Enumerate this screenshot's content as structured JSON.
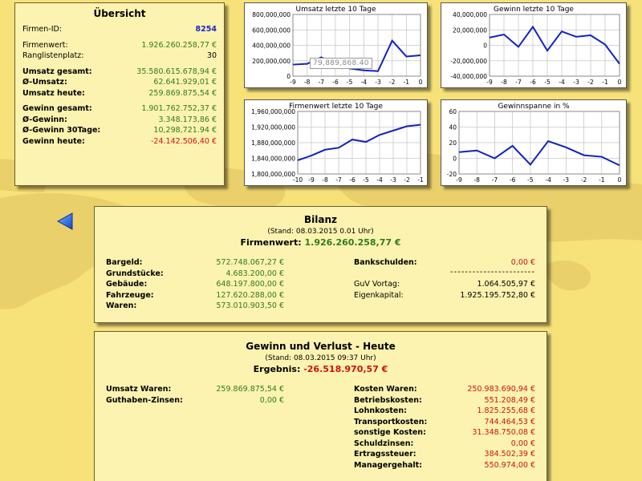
{
  "colors": {
    "positive": "#2e7d18",
    "negative": "#d01010",
    "chart_line": "#1222c0",
    "background": "#f7e27a",
    "panel": "#fdf3b0"
  },
  "overview": {
    "title": "Übersicht",
    "rows": [
      {
        "label": "Firmen-ID:",
        "value": "8254"
      },
      {
        "label": "Firmenwert:",
        "value": "1.926.260.258,77 €"
      },
      {
        "label": "Ranglistenplatz:",
        "value": "30"
      },
      {
        "label": "Umsatz gesamt:",
        "value": "35.580.615.678,94 €"
      },
      {
        "label": "Ø-Umsatz:",
        "value": "62.641.929,01 €"
      },
      {
        "label": "Umsatz heute:",
        "value": "259.869.875,54 €"
      },
      {
        "label": "Gewinn gesamt:",
        "value": "1.901.762.752,37 €"
      },
      {
        "label": "Ø-Gewinn:",
        "value": "3.348.173,86 €"
      },
      {
        "label": "Ø-Gewinn 30Tage:",
        "value": "10,298,721.94 €"
      },
      {
        "label": "Gewinn heute:",
        "value": "-24.142.506,40 €"
      }
    ]
  },
  "tooltip_value": "79,889,868.40",
  "chart_data": [
    {
      "type": "line",
      "title": "Umsatz letzte 10 Tage",
      "x": [
        -9,
        -8,
        -7,
        -6,
        -5,
        -4,
        -3,
        -2,
        -1,
        0
      ],
      "values": [
        150000000,
        160000000,
        245000000,
        160000000,
        100000000,
        75000000,
        65000000,
        460000000,
        255000000,
        270000000
      ],
      "ylim": [
        0,
        800000000
      ],
      "yticks": [
        "0",
        "200,000,000",
        "400,000,000",
        "600,000,000",
        "800,000,000"
      ],
      "xticks": [
        "-9",
        "-8",
        "-7",
        "-6",
        "-5",
        "-4",
        "-3",
        "-2",
        "-1",
        "0"
      ]
    },
    {
      "type": "line",
      "title": "Gewinn letzte 10 Tage",
      "x": [
        -9,
        -8,
        -7,
        -6,
        -5,
        -4,
        -3,
        -2,
        -1,
        0
      ],
      "values": [
        10000000,
        14000000,
        -2000000,
        24000000,
        -7000000,
        18000000,
        11000000,
        13000000,
        1000000,
        -24000000
      ],
      "ylim": [
        -40000000,
        40000000
      ],
      "yticks": [
        "-40,000,000",
        "-20,000,000",
        "0",
        "20,000,000",
        "40,000,000"
      ],
      "xticks": [
        "-9",
        "-8",
        "-7",
        "-6",
        "-5",
        "-4",
        "-3",
        "-2",
        "-1",
        "0"
      ]
    },
    {
      "type": "line",
      "title": "Firmenwert letzte 10 Tage",
      "x": [
        -10,
        -9,
        -8,
        -7,
        -6,
        -5,
        -4,
        -3,
        -2,
        -1
      ],
      "values": [
        1835000000,
        1847000000,
        1862000000,
        1867000000,
        1888000000,
        1882000000,
        1900000000,
        1911000000,
        1922000000,
        1926000000
      ],
      "ylim": [
        1800000000,
        1960000000
      ],
      "yticks": [
        "1,800,000,000",
        "1,840,000,000",
        "1,880,000,000",
        "1,920,000,000",
        "1,960,000,000"
      ],
      "xticks": [
        "-10",
        "-9",
        "-8",
        "-7",
        "-6",
        "-5",
        "-4",
        "-3",
        "-2",
        "-1"
      ]
    },
    {
      "type": "line",
      "title": "Gewinnspanne in %",
      "x": [
        -9,
        -8,
        -7,
        -6,
        -5,
        -4,
        -3,
        -2,
        -1,
        0
      ],
      "values": [
        8,
        10,
        0,
        16,
        -8,
        22,
        14,
        4,
        2,
        -9
      ],
      "ylim": [
        -20,
        60
      ],
      "yticks": [
        "-20",
        "0",
        "20",
        "40",
        "60"
      ],
      "xticks": [
        "-9",
        "-8",
        "-7",
        "-6",
        "-5",
        "-4",
        "-3",
        "-2",
        "-1",
        "0"
      ]
    }
  ],
  "bilanz": {
    "title": "Bilanz",
    "stand": "(Stand: 08.03.2015 0.01 Uhr)",
    "result_label": "Firmenwert:",
    "result_value": "1.926.260.258,77 €",
    "left": [
      {
        "label": "Bargeld:",
        "value": "572.748.067,27 €"
      },
      {
        "label": "Grundstücke:",
        "value": "4.683.200,00 €"
      },
      {
        "label": "Gebäude:",
        "value": "648.197.800,00 €"
      },
      {
        "label": "Fahrzeuge:",
        "value": "127.620.288,00 €"
      },
      {
        "label": "Waren:",
        "value": "573.010.903,50 €"
      }
    ],
    "right": [
      {
        "label": "Bankschulden:",
        "value": "0,00 €"
      },
      {
        "label": "GuV Vortag:",
        "value": "1.064.505,97 €"
      },
      {
        "label": "Eigenkapital:",
        "value": "1.925.195.752,80 €"
      }
    ],
    "separator": "-----------------------"
  },
  "guv": {
    "title": "Gewinn und Verlust - Heute",
    "stand": "(Stand: 08.03.2015 09:37 Uhr)",
    "result_label": "Ergebnis:",
    "result_value": "-26.518.970,57 €",
    "left": [
      {
        "label": "Umsatz Waren:",
        "value": "259.869.875,54 €"
      },
      {
        "label": "Guthaben-Zinsen:",
        "value": "0,00 €"
      }
    ],
    "right": [
      {
        "label": "Kosten Waren:",
        "value": "250.983.690,94 €"
      },
      {
        "label": "Betriebskosten:",
        "value": "551.208,49 €"
      },
      {
        "label": "Lohnkosten:",
        "value": "1.825.255,68 €"
      },
      {
        "label": "Transportkosten:",
        "value": "744.464,53 €"
      },
      {
        "label": "sonstige Kosten:",
        "value": "31.348.750,08 €"
      },
      {
        "label": "Schuldzinsen:",
        "value": "0,00 €"
      },
      {
        "label": "Ertragssteuer:",
        "value": "384.502,39 €"
      },
      {
        "label": "Managergehalt:",
        "value": "550.974,00 €"
      }
    ]
  }
}
